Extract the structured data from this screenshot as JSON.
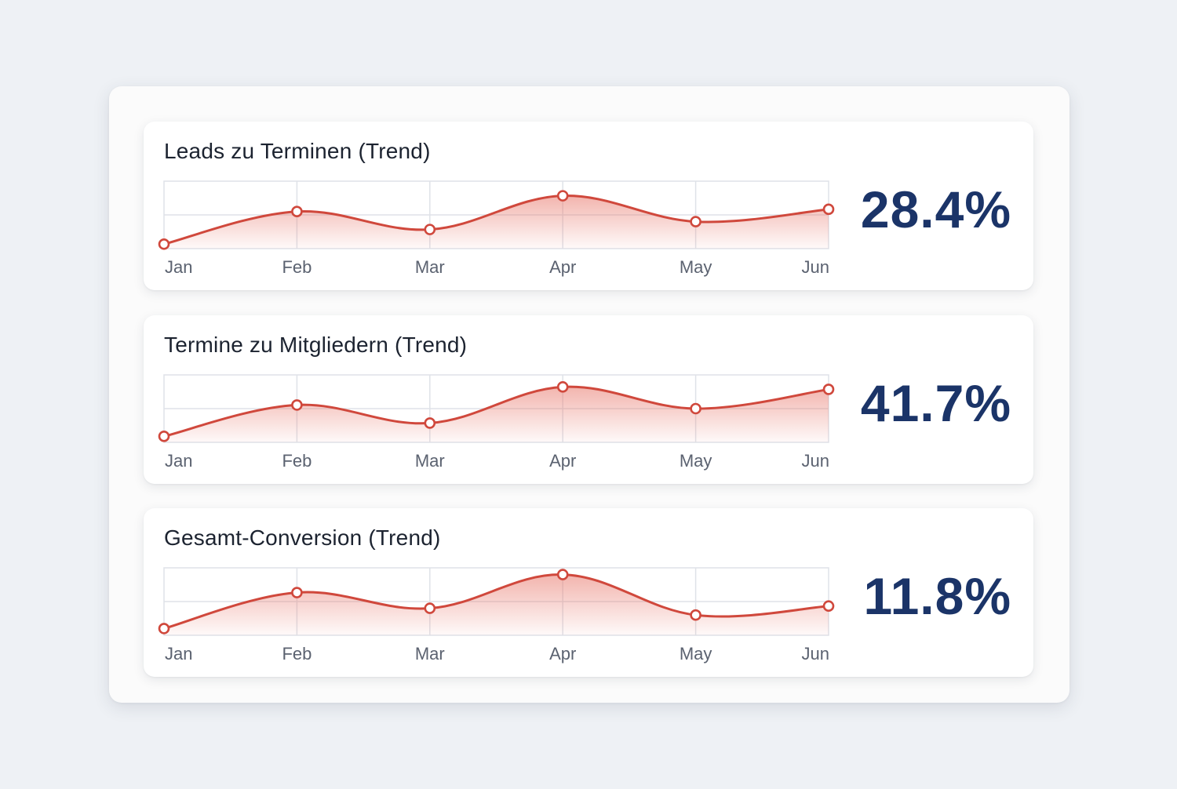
{
  "colors": {
    "line": "#d0483c",
    "fill": "#e8776b",
    "kpi": "#1b3468",
    "grid": "#dfe2e8"
  },
  "chart_data": [
    {
      "type": "area",
      "title": "Leads zu Terminen (Trend)",
      "categories": [
        "Jan",
        "Feb",
        "Mar",
        "Apr",
        "May",
        "Jun"
      ],
      "values": [
        25.9,
        28.8,
        27.2,
        30.2,
        27.9,
        29.0
      ],
      "ylim": [
        25.5,
        31.5
      ],
      "kpi": "28.4%",
      "grid": true
    },
    {
      "type": "area",
      "title": "Termine zu Mitgliedern (Trend)",
      "categories": [
        "Jan",
        "Feb",
        "Mar",
        "Apr",
        "May",
        "Jun"
      ],
      "values": [
        38.5,
        41.1,
        39.6,
        42.6,
        40.8,
        42.4
      ],
      "ylim": [
        38.0,
        43.6
      ],
      "kpi": "41.7%",
      "grid": true
    },
    {
      "type": "area",
      "title": "Gesamt-Conversion (Trend)",
      "categories": [
        "Jan",
        "Feb",
        "Mar",
        "Apr",
        "May",
        "Jun"
      ],
      "values": [
        10.3,
        11.9,
        11.2,
        12.7,
        10.9,
        11.3
      ],
      "ylim": [
        10.0,
        13.0
      ],
      "kpi": "11.8%",
      "grid": true
    }
  ]
}
